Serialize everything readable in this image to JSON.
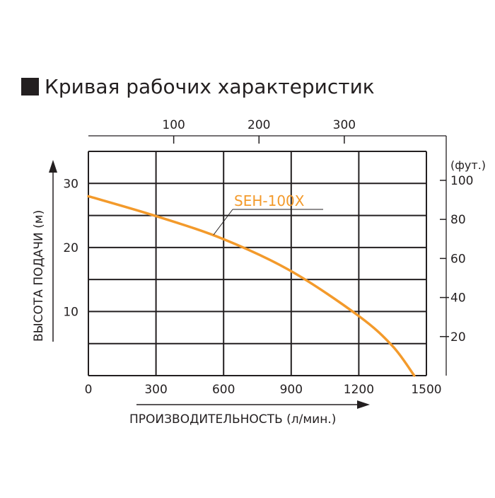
{
  "chart_data": {
    "type": "line",
    "title": "Кривая рабочих характеристик",
    "xlabel": "ПРОИЗВОДИТЕЛЬНОСТЬ (л/мин.)",
    "ylabel": "ВЫСОТА ПОДАЧИ (м)",
    "xlim": [
      0,
      1500
    ],
    "ylim": [
      0,
      35
    ],
    "x_ticks": [
      "0",
      "300",
      "600",
      "900",
      "1200",
      "1500"
    ],
    "y_ticks": [
      "10",
      "20",
      "30"
    ],
    "top_axis": {
      "ticks": [
        "100",
        "200",
        "300"
      ],
      "values": [
        100,
        200,
        300
      ],
      "per_lpm": 0.264172
    },
    "right_axis": {
      "label": "(фут.)",
      "ticks": [
        "20",
        "40",
        "60",
        "80",
        "100"
      ],
      "values": [
        20,
        40,
        60,
        80,
        100
      ],
      "per_m": 3.28084
    },
    "grid": true,
    "series": [
      {
        "name": "SEH-100X",
        "color": "#f39a2b",
        "x": [
          0,
          300,
          600,
          900,
          1200,
          1350,
          1446
        ],
        "y": [
          28.0,
          24.9,
          21.3,
          16.3,
          9.3,
          4.6,
          0
        ]
      }
    ]
  }
}
